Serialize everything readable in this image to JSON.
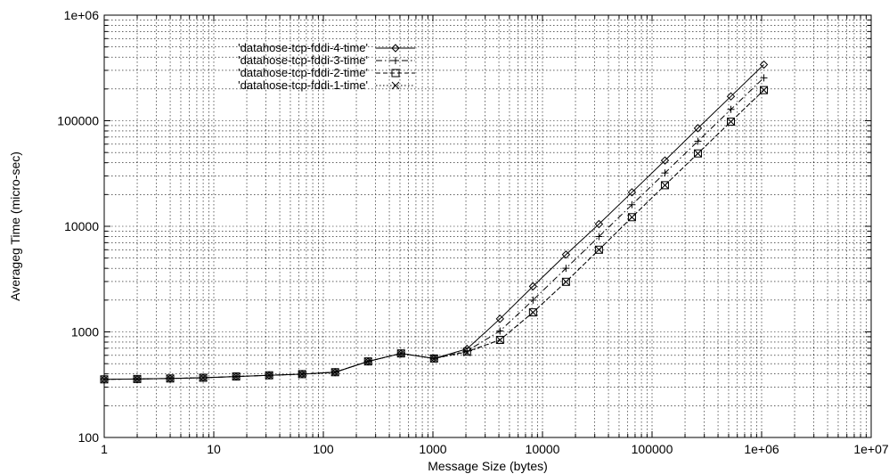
{
  "chart_data": {
    "type": "line",
    "title": "",
    "xlabel": "Message Size (bytes)",
    "ylabel": "Averageg Time (micro-sec)",
    "xscale": "log",
    "yscale": "log",
    "xlim": [
      1,
      10000000
    ],
    "ylim": [
      100,
      1000000
    ],
    "grid": true,
    "legend_position": "top-left",
    "x_tick_labels": [
      "1",
      "10",
      "100",
      "1000",
      "10000",
      "100000",
      "1e+06",
      "1e+07"
    ],
    "y_tick_labels": [
      "100",
      "1000",
      "10000",
      "100000",
      "1e+06"
    ],
    "x": [
      1,
      2,
      4,
      8,
      16,
      32,
      64,
      128,
      256,
      512,
      1024,
      2048,
      4096,
      8192,
      16384,
      32768,
      65536,
      131072,
      262144,
      524288,
      1048576
    ],
    "series": [
      {
        "name": "'datahose-tcp-fddi-4-time'",
        "marker": "diamond",
        "dash": "solid",
        "values": [
          355,
          358,
          362,
          368,
          378,
          388,
          398,
          415,
          525,
          625,
          560,
          690,
          1330,
          2700,
          5400,
          10500,
          21000,
          42000,
          85000,
          170000,
          340000
        ]
      },
      {
        "name": "'datahose-tcp-fddi-3-time'",
        "marker": "plus",
        "dash": "dash-dot",
        "values": [
          355,
          358,
          362,
          368,
          378,
          388,
          398,
          415,
          525,
          625,
          560,
          660,
          1020,
          2000,
          4000,
          8000,
          16000,
          32000,
          64000,
          128000,
          255000
        ]
      },
      {
        "name": "'datahose-tcp-fddi-2-time'",
        "marker": "square",
        "dash": "dashed",
        "values": [
          355,
          358,
          362,
          368,
          378,
          388,
          398,
          415,
          525,
          625,
          560,
          650,
          840,
          1530,
          2980,
          6000,
          12200,
          24500,
          49000,
          98000,
          195000
        ]
      },
      {
        "name": "'datahose-tcp-fddi-1-time'",
        "marker": "cross",
        "dash": "dotted",
        "values": [
          355,
          358,
          362,
          368,
          378,
          388,
          398,
          415,
          525,
          625,
          560,
          640,
          840,
          1530,
          2980,
          6000,
          12200,
          24500,
          49000,
          98000,
          195000
        ]
      }
    ]
  }
}
